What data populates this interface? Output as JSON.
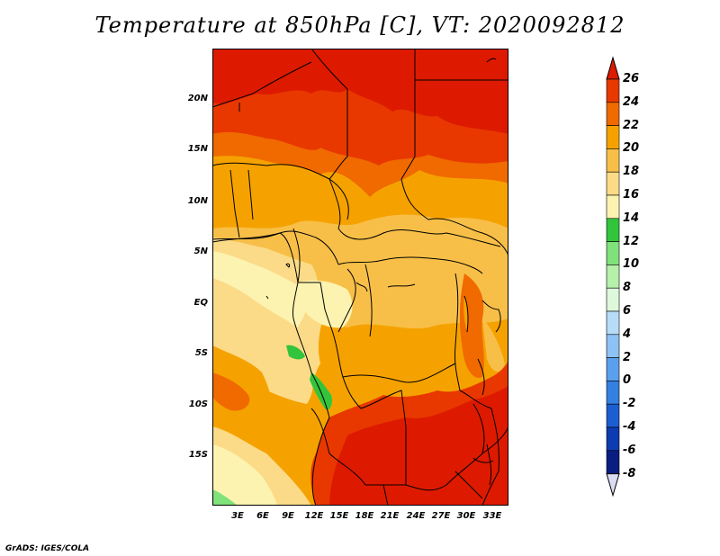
{
  "title": "Temperature at 850hPa [C], VT: 2020092812",
  "credit": "GrADS: IGES/COLA",
  "map": {
    "lat_labels": [
      "20N",
      "15N",
      "10N",
      "5N",
      "EQ",
      "5S",
      "10S",
      "15S"
    ],
    "lon_labels": [
      "3E",
      "6E",
      "9E",
      "12E",
      "15E",
      "18E",
      "21E",
      "24E",
      "27E",
      "30E",
      "33E"
    ]
  },
  "colorbar": {
    "labels": [
      "26",
      "24",
      "22",
      "20",
      "18",
      "16",
      "14",
      "12",
      "10",
      "8",
      "6",
      "4",
      "2",
      "0",
      "-2",
      "-4",
      "-6",
      "-8"
    ],
    "colors": [
      "#dd1a00",
      "#e83800",
      "#f06a00",
      "#f5a200",
      "#f8bf48",
      "#fbdb88",
      "#fdf3b0",
      "#32c43c",
      "#7fe27a",
      "#b6f0aa",
      "#def8dc",
      "#b7dcf8",
      "#8ec2f5",
      "#5aa0ec",
      "#3480e0",
      "#1c5ed2",
      "#0d3cb2",
      "#0a1d80"
    ],
    "top_arrow_color": "#dd1a00",
    "bottom_arrow_color": "#dcdcf4"
  }
}
